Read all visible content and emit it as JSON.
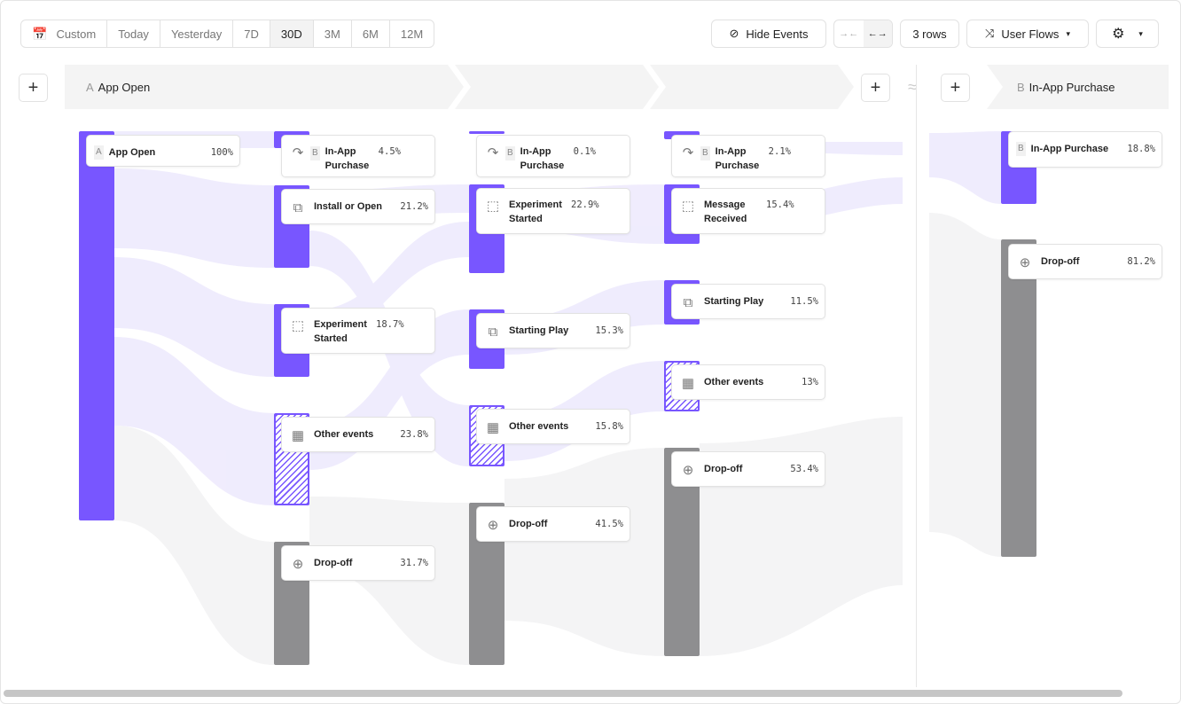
{
  "toolbar": {
    "date_ranges": [
      "Custom",
      "Today",
      "Yesterday",
      "7D",
      "30D",
      "3M",
      "6M",
      "12M"
    ],
    "selected_range": "30D",
    "hide_events": "Hide Events",
    "rows": "3 rows",
    "view": "User Flows"
  },
  "header": {
    "step_a_letter": "A",
    "step_a": "App Open",
    "step_b_letter": "B",
    "step_b": "In-App Purchase"
  },
  "columns": [
    {
      "nodes": [
        {
          "letter": "A",
          "label": "App Open",
          "pct": "100%",
          "icon": "none",
          "kind": "event"
        }
      ]
    },
    {
      "nodes": [
        {
          "letter": "B",
          "label": "In-App Purchase",
          "pct": "4.5%",
          "icon": "redirect-icon",
          "kind": "event"
        },
        {
          "label": "Install or Open",
          "pct": "21.2%",
          "icon": "copy-icon",
          "kind": "event"
        },
        {
          "label": "Experiment Started",
          "pct": "18.7%",
          "icon": "cursor-click-icon",
          "kind": "event"
        },
        {
          "label": "Other events",
          "pct": "23.8%",
          "icon": "grid-icon",
          "kind": "other"
        },
        {
          "label": "Drop-off",
          "pct": "31.7%",
          "icon": "arrow-down-circle-icon",
          "kind": "dropoff"
        }
      ]
    },
    {
      "nodes": [
        {
          "letter": "B",
          "label": "In-App Purchase",
          "pct": "0.1%",
          "icon": "redirect-icon",
          "kind": "event"
        },
        {
          "label": "Experiment Started",
          "pct": "22.9%",
          "icon": "cursor-click-icon",
          "kind": "event"
        },
        {
          "label": "Starting Play",
          "pct": "15.3%",
          "icon": "copy-icon",
          "kind": "event"
        },
        {
          "label": "Other events",
          "pct": "15.8%",
          "icon": "grid-icon",
          "kind": "other"
        },
        {
          "label": "Drop-off",
          "pct": "41.5%",
          "icon": "arrow-down-circle-icon",
          "kind": "dropoff"
        }
      ]
    },
    {
      "nodes": [
        {
          "letter": "B",
          "label": "In-App Purchase",
          "pct": "2.1%",
          "icon": "redirect-icon",
          "kind": "event"
        },
        {
          "label": "Message Received",
          "pct": "15.4%",
          "icon": "cursor-click-icon",
          "kind": "event"
        },
        {
          "label": "Starting Play",
          "pct": "11.5%",
          "icon": "copy-icon",
          "kind": "event"
        },
        {
          "label": "Other events",
          "pct": "13%",
          "icon": "grid-icon",
          "kind": "other"
        },
        {
          "label": "Drop-off",
          "pct": "53.4%",
          "icon": "arrow-down-circle-icon",
          "kind": "dropoff"
        }
      ]
    },
    {
      "nodes": [
        {
          "letter": "B",
          "label": "In-App Purchase",
          "pct": "18.8%",
          "icon": "none",
          "kind": "event"
        },
        {
          "label": "Drop-off",
          "pct": "81.2%",
          "icon": "arrow-down-circle-icon",
          "kind": "dropoff"
        }
      ]
    }
  ],
  "colors": {
    "event": "#7856ff",
    "dropoff": "#8e8e90",
    "flow": "#ebe7fd"
  }
}
